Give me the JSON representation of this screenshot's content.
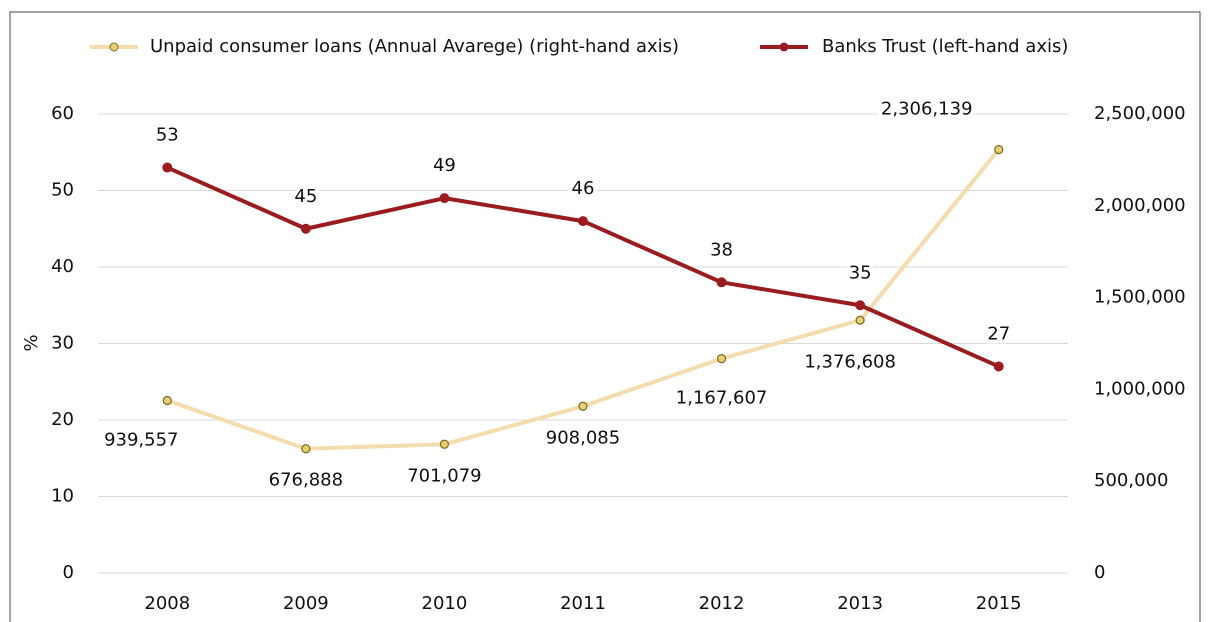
{
  "chart_data": {
    "type": "line",
    "categories": [
      "2008",
      "2009",
      "2010",
      "2011",
      "2012",
      "2013",
      "2015"
    ],
    "y_label": "%",
    "series": [
      {
        "name": "Unpaid consumer loans (Annual Avarege) (right-hand axis)",
        "color": "#f3dcae",
        "marker_color": "#e6cf73",
        "axis": "y2",
        "values": [
          939557,
          676888,
          701079,
          908085,
          1167607,
          1376608,
          2306139
        ],
        "value_labels": [
          "939,557",
          "676,888",
          "701,079",
          "908,085",
          "1,167,607",
          "1,376,608",
          "2,306,139"
        ]
      },
      {
        "name": "Banks Trust (left-hand axis)",
        "color": "#9b1c1f",
        "marker_color": "#9b1c1f",
        "values": [
          53,
          45,
          49,
          46,
          38,
          35,
          27
        ]
      }
    ],
    "ylim": [
      0,
      60
    ],
    "yticks": [
      0,
      10,
      20,
      30,
      40,
      50,
      60
    ],
    "y2lim": [
      0,
      2500000
    ],
    "y2ticks": [
      0,
      {
        "value": 500000,
        "label": "500,000"
      },
      {
        "value": 1000000,
        "label": "1,000,000"
      },
      {
        "value": 1500000,
        "label": "1,500,000"
      },
      {
        "value": 2000000,
        "label": "2,000,000"
      },
      {
        "value": 2500000,
        "label": "2,500,000"
      }
    ],
    "grid": true,
    "legend": "top"
  }
}
